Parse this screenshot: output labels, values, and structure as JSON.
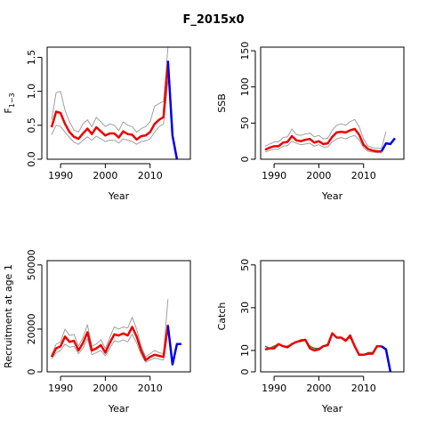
{
  "page_title": "F_2015x0",
  "colors": {
    "historic": "#ee0000",
    "projection": "#0000ee",
    "band": "#a0a0a0",
    "obs": "#2a8a2a"
  },
  "chart_data": [
    {
      "type": "line",
      "ylabel": "F",
      "ylabel_sub": "1−3",
      "xlabel": "Year",
      "xlim": [
        1987,
        2019
      ],
      "ylim": [
        0,
        1.65
      ],
      "xticks": [
        1990,
        2000,
        2010
      ],
      "yticks": [
        0.0,
        0.5,
        1.0,
        1.5
      ],
      "ytick_labels": [
        "0.0",
        "0.5",
        "1.0",
        "1.5"
      ],
      "series": [
        {
          "role": "upper",
          "x": [
            1988,
            1989,
            1990,
            1991,
            1992,
            1993,
            1994,
            1995,
            1996,
            1997,
            1998,
            1999,
            2000,
            2001,
            2002,
            2003,
            2004,
            2005,
            2006,
            2007,
            2008,
            2009,
            2010,
            2011,
            2012,
            2013,
            2014
          ],
          "y": [
            0.58,
            0.98,
            1.0,
            0.72,
            0.55,
            0.43,
            0.4,
            0.52,
            0.58,
            0.48,
            0.62,
            0.55,
            0.48,
            0.52,
            0.5,
            0.42,
            0.55,
            0.5,
            0.48,
            0.4,
            0.45,
            0.48,
            0.55,
            0.78,
            0.82,
            0.85,
            1.65
          ]
        },
        {
          "role": "lower",
          "x": [
            1988,
            1989,
            1990,
            1991,
            1992,
            1993,
            1994,
            1995,
            1996,
            1997,
            1998,
            1999,
            2000,
            2001,
            2002,
            2003,
            2004,
            2005,
            2006,
            2007,
            2008,
            2009,
            2010,
            2011,
            2012,
            2013,
            2014
          ],
          "y": [
            0.36,
            0.5,
            0.48,
            0.4,
            0.32,
            0.25,
            0.22,
            0.28,
            0.33,
            0.28,
            0.34,
            0.3,
            0.26,
            0.28,
            0.28,
            0.24,
            0.3,
            0.28,
            0.26,
            0.22,
            0.26,
            0.27,
            0.3,
            0.4,
            0.48,
            0.52,
            1.15
          ]
        },
        {
          "role": "historic",
          "x": [
            1988,
            1989,
            1990,
            1991,
            1992,
            1993,
            1994,
            1995,
            1996,
            1997,
            1998,
            1999,
            2000,
            2001,
            2002,
            2003,
            2004,
            2005,
            2006,
            2007,
            2008,
            2009,
            2010,
            2011,
            2012,
            2013,
            2014
          ],
          "y": [
            0.47,
            0.7,
            0.68,
            0.52,
            0.4,
            0.33,
            0.3,
            0.38,
            0.45,
            0.37,
            0.47,
            0.41,
            0.35,
            0.38,
            0.38,
            0.32,
            0.41,
            0.37,
            0.36,
            0.29,
            0.34,
            0.35,
            0.4,
            0.52,
            0.58,
            0.62,
            1.4
          ]
        },
        {
          "role": "projection",
          "x": [
            2014,
            2015,
            2016
          ],
          "y": [
            1.45,
            0.35,
            0.0
          ]
        }
      ]
    },
    {
      "type": "line",
      "ylabel": "SSB",
      "xlabel": "Year",
      "xlim": [
        1987,
        2019
      ],
      "ylim": [
        0,
        155
      ],
      "xticks": [
        1990,
        2000,
        2010
      ],
      "yticks": [
        0,
        50,
        100,
        150
      ],
      "ytick_labels": [
        "0",
        "50",
        "100",
        "150"
      ],
      "series": [
        {
          "role": "upper",
          "x": [
            1988,
            1989,
            1990,
            1991,
            1992,
            1993,
            1994,
            1995,
            1996,
            1997,
            1998,
            1999,
            2000,
            2001,
            2002,
            2003,
            2004,
            2005,
            2006,
            2007,
            2008,
            2009,
            2010,
            2011,
            2012,
            2013,
            2014,
            2015
          ],
          "y": [
            18,
            21,
            24,
            24,
            30,
            31,
            42,
            34,
            33,
            35,
            36,
            31,
            33,
            28,
            29,
            40,
            47,
            49,
            47,
            52,
            55,
            45,
            28,
            18,
            16,
            15,
            15,
            38
          ]
        },
        {
          "role": "lower",
          "x": [
            1988,
            1989,
            1990,
            1991,
            1992,
            1993,
            1994,
            1995,
            1996,
            1997,
            1998,
            1999,
            2000,
            2001,
            2002,
            2003,
            2004,
            2005,
            2006,
            2007,
            2008,
            2009,
            2010,
            2011,
            2012,
            2013,
            2014,
            2015
          ],
          "y": [
            10,
            12,
            14,
            14,
            18,
            19,
            25,
            22,
            20,
            21,
            22,
            18,
            20,
            17,
            17,
            24,
            28,
            30,
            28,
            31,
            33,
            27,
            16,
            11,
            10,
            9,
            9,
            20
          ]
        },
        {
          "role": "historic",
          "x": [
            1988,
            1989,
            1990,
            1991,
            1992,
            1993,
            1994,
            1995,
            1996,
            1997,
            1998,
            1999,
            2000,
            2001,
            2002,
            2003,
            2004,
            2005,
            2006,
            2007,
            2008,
            2009,
            2010,
            2011,
            2012,
            2013,
            2014
          ],
          "y": [
            13,
            16,
            18,
            18,
            23,
            24,
            32,
            26,
            25,
            27,
            28,
            23,
            25,
            21,
            22,
            31,
            37,
            38,
            37,
            40,
            42,
            34,
            20,
            14,
            12,
            11,
            11
          ]
        },
        {
          "role": "projection",
          "x": [
            2014,
            2015,
            2016,
            2017
          ],
          "y": [
            11,
            22,
            21,
            29
          ]
        }
      ]
    },
    {
      "type": "line",
      "ylabel": "Recruitment at age 1",
      "xlabel": "Year",
      "xlim": [
        1987,
        2019
      ],
      "ylim": [
        0,
        52000
      ],
      "xticks": [
        1990,
        2000,
        2010
      ],
      "yticks": [
        0,
        20000,
        50000
      ],
      "ytick_labels": [
        "0",
        "20000",
        "50000"
      ],
      "series": [
        {
          "role": "upper",
          "x": [
            1988,
            1989,
            1990,
            1991,
            1992,
            1993,
            1994,
            1995,
            1996,
            1997,
            1998,
            1999,
            2000,
            2001,
            2002,
            2003,
            2004,
            2005,
            2006,
            2007,
            2008,
            2009,
            2010,
            2011,
            2012,
            2013,
            2014
          ],
          "y": [
            8000,
            13000,
            14000,
            20000,
            17000,
            17500,
            12000,
            16000,
            22000,
            12000,
            13000,
            15000,
            11000,
            16000,
            21000,
            20000,
            21000,
            20500,
            25500,
            20000,
            12000,
            7000,
            8500,
            10000,
            9000,
            8500,
            34000
          ]
        },
        {
          "role": "lower",
          "x": [
            1988,
            1989,
            1990,
            1991,
            1992,
            1993,
            1994,
            1995,
            1996,
            1997,
            1998,
            1999,
            2000,
            2001,
            2002,
            2003,
            2004,
            2005,
            2006,
            2007,
            2008,
            2009,
            2010,
            2011,
            2012,
            2013,
            2014
          ],
          "y": [
            6000,
            9000,
            10000,
            13000,
            11500,
            12000,
            8500,
            11000,
            15500,
            8000,
            9000,
            10000,
            7500,
            11000,
            14500,
            14000,
            15000,
            14000,
            17500,
            13500,
            8000,
            4500,
            5500,
            6500,
            6000,
            5500,
            20000
          ]
        },
        {
          "role": "historic",
          "x": [
            1988,
            1989,
            1990,
            1991,
            1992,
            1993,
            1994,
            1995,
            1996,
            1997,
            1998,
            1999,
            2000,
            2001,
            2002,
            2003,
            2004,
            2005,
            2006,
            2007,
            2008,
            2009,
            2010,
            2011,
            2012,
            2013,
            2014
          ],
          "y": [
            7000,
            11000,
            12000,
            16500,
            14000,
            14500,
            10000,
            13500,
            18500,
            10000,
            11000,
            12500,
            9000,
            13500,
            17500,
            17000,
            18000,
            17000,
            21000,
            16500,
            10000,
            5500,
            7000,
            8000,
            7500,
            7000,
            22000
          ]
        },
        {
          "role": "projection",
          "x": [
            2014,
            2015,
            2016,
            2017
          ],
          "y": [
            21500,
            3500,
            13000,
            13000
          ]
        }
      ]
    },
    {
      "type": "line",
      "ylabel": "Catch",
      "xlabel": "Year",
      "xlim": [
        1987,
        2019
      ],
      "ylim": [
        0,
        52
      ],
      "xticks": [
        1990,
        2000,
        2010
      ],
      "yticks": [
        0,
        10,
        30,
        50
      ],
      "ytick_labels": [
        "0",
        "10",
        "30",
        "50"
      ],
      "series": [
        {
          "role": "observed",
          "x": [
            1988,
            1989,
            1990,
            1991,
            1992,
            1993,
            1994,
            1995,
            1996,
            1997,
            1998,
            1999,
            2000,
            2001,
            2002,
            2003,
            2004,
            2005,
            2006,
            2007,
            2008,
            2009,
            2010,
            2011,
            2012,
            2013,
            2014
          ],
          "y": [
            12,
            11,
            12,
            13,
            12,
            12,
            13,
            14,
            15,
            15,
            12,
            11,
            11,
            12,
            13,
            18,
            16,
            16,
            15,
            16,
            12,
            8,
            8,
            9,
            9,
            12,
            12
          ]
        },
        {
          "role": "historic",
          "x": [
            1988,
            1989,
            1990,
            1991,
            1992,
            1993,
            1994,
            1995,
            1996,
            1997,
            1998,
            1999,
            2000,
            2001,
            2002,
            2003,
            2004,
            2005,
            2006,
            2007,
            2008,
            2009,
            2010,
            2011,
            2012,
            2013,
            2014
          ],
          "y": [
            10.5,
            11,
            11,
            13,
            12,
            11.5,
            13,
            14,
            14.5,
            15,
            11,
            10,
            10.5,
            12,
            12.5,
            18,
            16,
            16,
            14.5,
            17,
            12,
            8,
            8,
            8.5,
            8.5,
            12,
            12
          ]
        },
        {
          "role": "projection",
          "x": [
            2014,
            2015,
            2016
          ],
          "y": [
            12,
            10.5,
            0
          ]
        }
      ]
    }
  ]
}
